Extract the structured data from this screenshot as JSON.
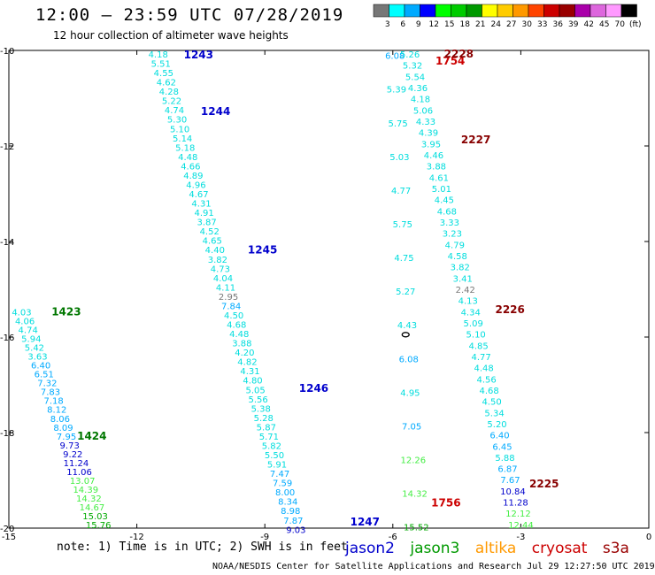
{
  "header": {
    "title": "12:00 – 23:59 UTC 07/28/2019",
    "subtitle": "12 hour collection of altimeter wave heights"
  },
  "footer": {
    "note": "note:  1) Time is in UTC;  2) SWH is in feet",
    "credit": "NOAA/NESDIS Center for Satellite Applications and Research    Jul 29 12:27:50 UTC 2019"
  },
  "legend": [
    {
      "label": "jason2",
      "color": "#0000cc"
    },
    {
      "label": "jason3",
      "color": "#009900"
    },
    {
      "label": "altika",
      "color": "#ff9900"
    },
    {
      "label": "cryosat",
      "color": "#cc0000"
    },
    {
      "label": "s3a",
      "color": "#990000"
    }
  ],
  "colorbar": {
    "ticks": [
      "3",
      "6",
      "9",
      "12",
      "15",
      "18",
      "21",
      "24",
      "27",
      "30",
      "33",
      "36",
      "39",
      "42",
      "45",
      "70",
      "(ft)"
    ],
    "colors": [
      "#777777",
      "#00ffff",
      "#00aaff",
      "#0000ff",
      "#00ff00",
      "#00cc00",
      "#009900",
      "#ffff00",
      "#ffcc00",
      "#ff9900",
      "#ff4400",
      "#cc0000",
      "#990000",
      "#aa00aa",
      "#dd66dd",
      "#ff99ff",
      "#000000"
    ]
  },
  "chart_data": {
    "type": "scatter",
    "title": "12:00 – 23:59 UTC 07/28/2019",
    "subtitle": "12 hour collection of altimeter wave heights",
    "xlim": [
      -15,
      0
    ],
    "ylim": [
      -20,
      -10
    ],
    "xticks": [
      "-15",
      "-12",
      "-9",
      "-6",
      "-3",
      "0"
    ],
    "yticks": [
      "-10",
      "-12",
      "-14",
      "-16",
      "-18",
      "-20"
    ],
    "xtick_values": [
      -15,
      -12,
      -9,
      -6,
      -3,
      0
    ],
    "ytick_values": [
      -10,
      -12,
      -14,
      -16,
      -18,
      -20
    ],
    "units": "ft",
    "land": [
      {
        "label": "",
        "lon": -5.7,
        "lat": -15.95
      }
    ],
    "passes": [
      {
        "satellite": "jason2",
        "labels": [
          {
            "text": "1243",
            "lon": -10.9,
            "lat": -10.02
          },
          {
            "text": "1244",
            "lon": -10.5,
            "lat": -11.2
          },
          {
            "text": "1245",
            "lon": -9.4,
            "lat": -14.1
          },
          {
            "text": "1246",
            "lon": -8.2,
            "lat": -17.0
          },
          {
            "text": "1247",
            "lon": -7.0,
            "lat": -19.8
          }
        ],
        "start": {
          "lon": -11.5,
          "lat": -10.0
        },
        "end": {
          "lon": -8.27,
          "lat": -19.95
        },
        "swh": [
          4.18,
          5.51,
          4.55,
          4.62,
          4.28,
          5.22,
          4.74,
          5.3,
          5.1,
          5.14,
          5.18,
          4.48,
          4.66,
          4.89,
          4.96,
          4.67,
          4.31,
          4.91,
          3.87,
          4.52,
          4.65,
          4.4,
          3.82,
          4.73,
          4.04,
          4.11,
          2.95,
          7.84,
          4.5,
          4.68,
          4.48,
          3.88,
          4.2,
          4.82,
          4.31,
          4.8,
          5.05,
          5.56,
          5.38,
          5.28,
          5.87,
          5.71,
          5.82,
          5.5,
          5.91,
          7.47,
          7.59,
          8.0,
          8.34,
          8.98,
          7.87,
          9.03
        ]
      },
      {
        "satellite": "jason3",
        "labels": [
          {
            "text": "1423",
            "lon": -14.0,
            "lat": -15.4
          },
          {
            "text": "1424",
            "lon": -13.4,
            "lat": -18.0
          }
        ],
        "start": {
          "lon": -14.7,
          "lat": -15.4
        },
        "end": {
          "lon": -12.9,
          "lat": -19.85
        },
        "swh": [
          4.03,
          4.06,
          4.74,
          5.94,
          5.42,
          3.63,
          6.4,
          6.51,
          7.32,
          7.83,
          7.18,
          8.12,
          8.06,
          8.09,
          7.95,
          9.73,
          9.22,
          11.24,
          11.06,
          13.07,
          14.39,
          14.32,
          14.67,
          15.03,
          15.76
        ]
      },
      {
        "satellite": "cryosat",
        "labels": [
          {
            "text": "1754",
            "lon": -5.0,
            "lat": -10.15
          },
          {
            "text": "1756",
            "lon": -5.1,
            "lat": -19.4
          }
        ],
        "start": {
          "lon": -5.95,
          "lat": -10.03
        },
        "end": {
          "lon": -5.45,
          "lat": -19.9
        },
        "swh": [
          6.08,
          5.39,
          5.75,
          5.03,
          4.77,
          5.75,
          4.75,
          5.27,
          4.43,
          6.08,
          4.95,
          7.05,
          12.26,
          14.32,
          15.52
        ]
      },
      {
        "satellite": "s3a",
        "labels": [
          {
            "text": "2228",
            "lon": -4.8,
            "lat": -10.0
          },
          {
            "text": "2227",
            "lon": -4.4,
            "lat": -11.8
          },
          {
            "text": "2226",
            "lon": -3.6,
            "lat": -15.35
          },
          {
            "text": "2225",
            "lon": -2.8,
            "lat": -19.0
          }
        ],
        "start": {
          "lon": -5.6,
          "lat": -10.0
        },
        "end": {
          "lon": -3.0,
          "lat": -19.85
        },
        "swh": [
          5.26,
          5.32,
          5.54,
          4.36,
          4.18,
          5.06,
          4.33,
          4.39,
          3.95,
          4.46,
          3.88,
          4.61,
          5.01,
          4.45,
          4.68,
          3.33,
          3.23,
          4.79,
          4.58,
          3.82,
          3.41,
          2.42,
          4.13,
          4.34,
          5.09,
          5.1,
          4.85,
          4.77,
          4.48,
          4.56,
          4.68,
          4.5,
          5.34,
          5.2,
          6.4,
          6.45,
          5.88,
          6.87,
          7.67,
          10.84,
          11.28,
          12.12,
          12.44
        ]
      }
    ]
  }
}
